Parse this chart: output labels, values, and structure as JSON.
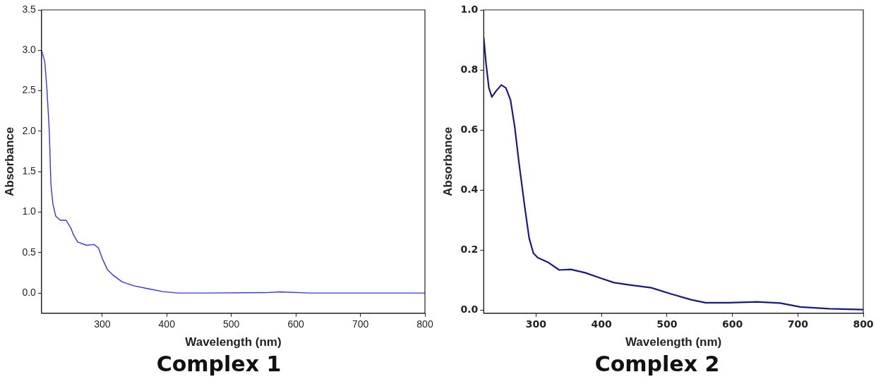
{
  "chart_data": [
    {
      "type": "line",
      "xlabel": "Wavelength (nm)",
      "ylabel": "Absorbance",
      "annotations": [
        "Complex 1"
      ],
      "xlim": [
        206,
        800
      ],
      "ylim": [
        -0.25,
        3.5
      ],
      "xticks": [
        300,
        400,
        500,
        600,
        700,
        800
      ],
      "yticks": [
        {
          "value": 0,
          "label": "0.0"
        },
        0.5,
        {
          "value": 1,
          "label": "1.0"
        },
        1.5,
        {
          "value": 2,
          "label": "2.0"
        },
        2.5,
        {
          "value": 3,
          "label": "3.0"
        },
        3.5
      ],
      "grid": false,
      "legend": false,
      "marker": "none",
      "line_style": "solid",
      "series": [
        {
          "color": "#3333ee",
          "x": [
            206,
            211,
            214.5,
            218,
            220.5,
            223.6,
            228,
            235,
            244,
            251,
            255.5,
            262,
            276,
            287,
            294,
            301,
            308,
            317,
            330.5,
            349,
            371,
            394,
            417,
            462,
            553,
            576,
            621,
            800
          ],
          "values": [
            3.0,
            2.86,
            2.5,
            2.0,
            1.35,
            1.1,
            0.95,
            0.9,
            0.9,
            0.81,
            0.72,
            0.63,
            0.59,
            0.6,
            0.56,
            0.41,
            0.29,
            0.22,
            0.14,
            0.09,
            0.054,
            0.018,
            0.0,
            0.0,
            0.005,
            0.015,
            0.0,
            0.0
          ]
        }
      ]
    },
    {
      "type": "line",
      "xlabel": "Wavelength (nm)",
      "ylabel": "Absorbance",
      "annotations": [
        "Complex 2"
      ],
      "xlim": [
        220,
        800
      ],
      "ylim": [
        -0.01,
        1.0
      ],
      "xticks": [
        300,
        400,
        500,
        600,
        700,
        800
      ],
      "yticks": [
        {
          "value": 0,
          "label": "0.0"
        },
        0.2,
        0.4,
        0.6,
        0.8,
        {
          "value": 1,
          "label": "1.0"
        }
      ],
      "grid": false,
      "legend": false,
      "marker": "none",
      "line_style": "solid",
      "series": [
        {
          "color": "#1a1a80",
          "x": [
            220,
            223.7,
            228,
            232.5,
            239,
            247,
            254,
            261,
            267.5,
            274,
            283,
            289.5,
            296,
            302.6,
            318,
            335.5,
            353,
            375,
            397,
            419,
            441,
            476,
            506.6,
            537,
            559,
            594,
            638,
            673,
            704,
            748,
            800
          ],
          "values": [
            0.91,
            0.82,
            0.74,
            0.71,
            0.73,
            0.75,
            0.74,
            0.7,
            0.61,
            0.49,
            0.34,
            0.24,
            0.19,
            0.175,
            0.16,
            0.134,
            0.136,
            0.125,
            0.108,
            0.092,
            0.085,
            0.075,
            0.054,
            0.035,
            0.025,
            0.025,
            0.028,
            0.024,
            0.011,
            0.005,
            0.002
          ]
        }
      ]
    }
  ]
}
